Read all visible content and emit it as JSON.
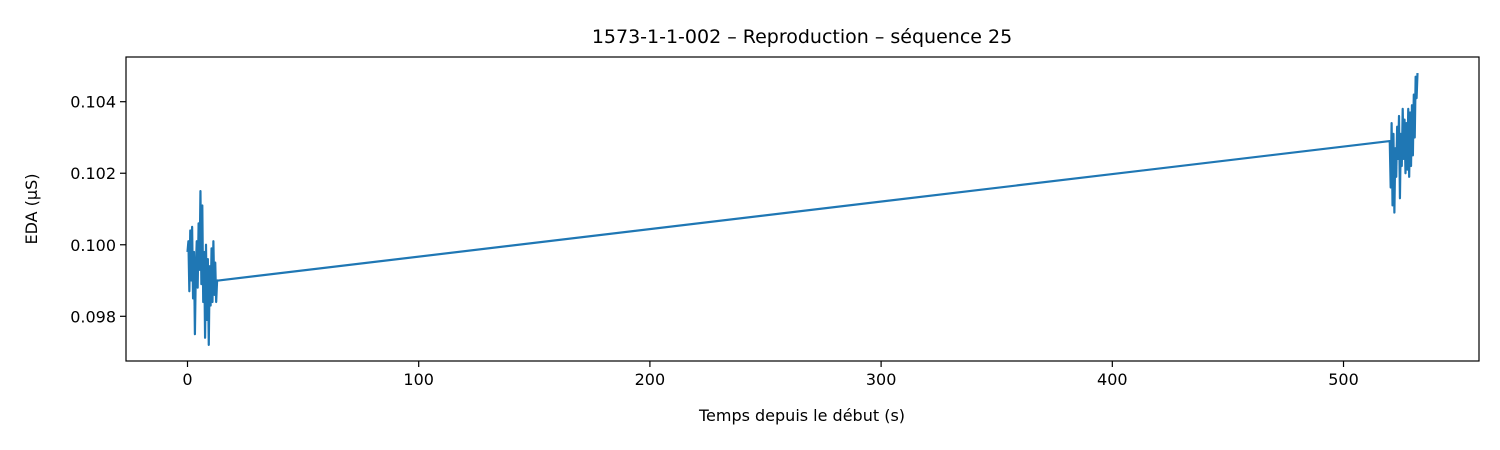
{
  "chart_data": {
    "type": "line",
    "title": "1573-1-1-002 – Reproduction – séquence 25",
    "xlabel": "Temps depuis le début (s)",
    "ylabel": "EDA (µS)",
    "xlim": [
      -26.6,
      558.6
    ],
    "ylim": [
      0.09675,
      0.10525
    ],
    "xticks": [
      0,
      100,
      200,
      300,
      400,
      500
    ],
    "xtick_labels": [
      "0",
      "100",
      "200",
      "300",
      "400",
      "500"
    ],
    "yticks": [
      0.098,
      0.1,
      0.102,
      0.104
    ],
    "ytick_labels": [
      "0.098",
      "0.100",
      "0.102",
      "0.104"
    ],
    "grid": false,
    "legend": "none",
    "color": "#1f77b4",
    "series": [
      {
        "x": [
          0.0,
          0.4,
          0.8,
          1.2,
          1.6,
          2.0,
          2.4,
          2.8,
          3.2,
          3.6,
          4.0,
          4.4,
          4.8,
          5.2,
          5.6,
          6.0,
          6.4,
          6.8,
          7.2,
          7.6,
          8.0,
          8.4,
          8.8,
          9.2,
          9.6,
          10.0,
          10.4,
          10.8,
          11.2,
          11.6,
          12.0,
          12.4,
          12.8,
          13.2,
          520.0,
          520.4,
          520.8,
          521.2,
          521.6,
          522.0,
          522.4,
          522.8,
          523.2,
          523.6,
          524.0,
          524.4,
          524.8,
          525.2,
          525.6,
          526.0,
          526.4,
          526.8,
          527.2,
          527.6,
          528.0,
          528.4,
          528.8,
          529.2,
          529.6,
          530.0,
          530.4,
          530.8,
          531.2,
          531.6,
          532.0
        ],
        "y": [
          0.0998,
          0.1001,
          0.0987,
          0.1004,
          0.099,
          0.1005,
          0.0985,
          0.0998,
          0.0975,
          0.0993,
          0.1001,
          0.0988,
          0.1006,
          0.0993,
          0.1015,
          0.0989,
          0.1011,
          0.0984,
          0.0998,
          0.0974,
          0.1,
          0.0979,
          0.0996,
          0.0972,
          0.0994,
          0.0983,
          0.0999,
          0.0984,
          0.1001,
          0.0986,
          0.0995,
          0.0984,
          0.099,
          0.099,
          0.1029,
          0.1016,
          0.1034,
          0.1011,
          0.1031,
          0.1009,
          0.1027,
          0.1019,
          0.1033,
          0.1024,
          0.1036,
          0.1013,
          0.1031,
          0.1022,
          0.1038,
          0.1024,
          0.1035,
          0.102,
          0.1034,
          0.1021,
          0.1038,
          0.1019,
          0.1037,
          0.1022,
          0.1039,
          0.1025,
          0.1042,
          0.103,
          0.1047,
          0.1041,
          0.1048
        ]
      }
    ]
  }
}
